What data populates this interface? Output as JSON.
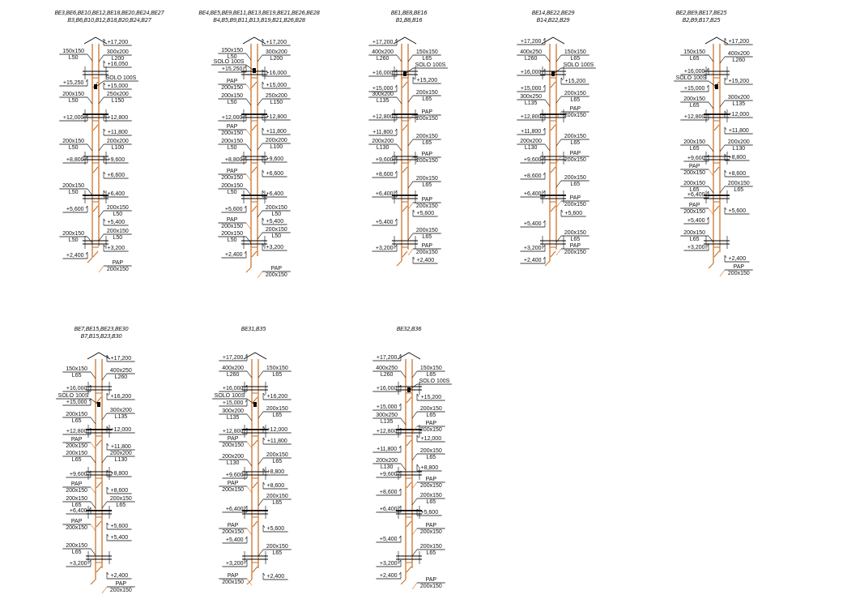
{
  "colors": {
    "pipe": "#c8691c",
    "line": "#000000"
  },
  "diagrams": [
    {
      "title": [
        "BE3,BE6,BE10,BE12,BE18,BE20,BE24,BE27",
        "B3,B6,B10,B12,B18,B20,B24,B27"
      ],
      "labels": [
        [
          "+17,200"
        ],
        [
          "150x150",
          "L50"
        ],
        [
          "300x200",
          "L200"
        ],
        [
          "+16,050"
        ],
        [
          "SOLO 100S"
        ],
        [
          "+15,250"
        ],
        [
          "+15,000"
        ],
        [
          "200x150",
          "L50"
        ],
        [
          "250x200",
          "L150"
        ],
        [
          "+12,000"
        ],
        [
          "+12,800"
        ],
        [
          "+11,800"
        ],
        [
          "200x150",
          "L50"
        ],
        [
          "200x200",
          "L100"
        ],
        [
          "+8,800"
        ],
        [
          "+9,600"
        ],
        [
          "+6,600"
        ],
        [
          "200x150",
          "L50"
        ],
        [
          "+6,400"
        ],
        [
          "+5,600"
        ],
        [
          "200x150",
          "L50"
        ],
        [
          "+5,400"
        ],
        [
          "200x150",
          "L50"
        ],
        [
          "200x150",
          "L50"
        ],
        [
          "+3,200"
        ],
        [
          "+2,400"
        ],
        [
          "PAP",
          "200x150"
        ]
      ]
    },
    {
      "title": [
        "BE4,BE5,BE9,BE11,BE13,BE19,BE21,BE26,BE28",
        "B4,B5,B9,B11,B13,B19,B21,B26,B28"
      ],
      "labels": [
        [
          "+17,200"
        ],
        [
          "150x150",
          "L50"
        ],
        [
          "300x200",
          "L200"
        ],
        [
          "SOLO 100S"
        ],
        [
          "+15,250"
        ],
        [
          "+16,000"
        ],
        [
          "PAP",
          "200x150"
        ],
        [
          "+15,000"
        ],
        [
          "200x150",
          "L50"
        ],
        [
          "250x200",
          "L150"
        ],
        [
          "+12,000"
        ],
        [
          "+12,800"
        ],
        [
          "PAP",
          "200x150"
        ],
        [
          "+11,800"
        ],
        [
          "200x150",
          "L50"
        ],
        [
          "200x200",
          "L100"
        ],
        [
          "+8,800"
        ],
        [
          "+9,600"
        ],
        [
          "PAP",
          "200x150"
        ],
        [
          "+6,600"
        ],
        [
          "200x150",
          "L50"
        ],
        [
          "+6,400"
        ],
        [
          "+5,600"
        ],
        [
          "200x150",
          "L50"
        ],
        [
          "PAP",
          "200x150"
        ],
        [
          "+5,400"
        ],
        [
          "200x150",
          "L50"
        ],
        [
          "200x150",
          "L50"
        ],
        [
          "+3,200"
        ],
        [
          "+2,400"
        ],
        [
          "PAP",
          "200x150"
        ]
      ]
    },
    {
      "title": [
        "BE1,BE8,BE16",
        "B1,B8,B16"
      ],
      "labels": [
        [
          "+17,200"
        ],
        [
          "400x200",
          "L260"
        ],
        [
          "150x150",
          "L65"
        ],
        [
          "SOLO 100S"
        ],
        [
          "+16,000"
        ],
        [
          "+15,200"
        ],
        [
          "+15,000"
        ],
        [
          "300x200",
          "L135"
        ],
        [
          "200x150",
          "L65"
        ],
        [
          "+12,800"
        ],
        [
          "PAP",
          "200x150"
        ],
        [
          "+11,800"
        ],
        [
          "200x200",
          "L130"
        ],
        [
          "200x150",
          "L65"
        ],
        [
          "+9,600"
        ],
        [
          "PAP",
          "200x150"
        ],
        [
          "+8,600"
        ],
        [
          "200x150",
          "L65"
        ],
        [
          "+6,400"
        ],
        [
          "PAP",
          "200x150"
        ],
        [
          "+5,600"
        ],
        [
          "+5,400"
        ],
        [
          "200x150",
          "L65"
        ],
        [
          "+3,200"
        ],
        [
          "PAP",
          "200x150"
        ],
        [
          "+2,400"
        ]
      ]
    },
    {
      "title": [
        "BE14,BE22,BE29",
        "B14,B22,B29"
      ],
      "labels": [
        [
          "+17,200"
        ],
        [
          "400x250",
          "L260"
        ],
        [
          "150x150",
          "L65"
        ],
        [
          "SOLO 100S"
        ],
        [
          "+16,000"
        ],
        [
          "+15,200"
        ],
        [
          "+15,000"
        ],
        [
          "300x250",
          "L135"
        ],
        [
          "200x150",
          "L65"
        ],
        [
          "PAP",
          "200x150"
        ],
        [
          "+12,800"
        ],
        [
          "+11,800"
        ],
        [
          "200x200",
          "L130"
        ],
        [
          "200x150",
          "L65"
        ],
        [
          "PAP",
          "200x150"
        ],
        [
          "+9,600"
        ],
        [
          "+8,600"
        ],
        [
          "200x150",
          "L65"
        ],
        [
          "+6,400"
        ],
        [
          "PAP",
          "200x150"
        ],
        [
          "+5,600"
        ],
        [
          "+5,400"
        ],
        [
          "200x150",
          "L65"
        ],
        [
          "+3,200"
        ],
        [
          "PAP",
          "200x150"
        ],
        [
          "+2,400"
        ]
      ]
    },
    {
      "title": [
        "BE2,BE9,BE17,BE25",
        "B2,B9,B17,B25"
      ],
      "labels": [
        [
          "+17,200"
        ],
        [
          "150x150",
          "L65"
        ],
        [
          "400x200",
          "L260"
        ],
        [
          "+16,000"
        ],
        [
          "SOLO 100S"
        ],
        [
          "+15,200"
        ],
        [
          "+15,000"
        ],
        [
          "200x150",
          "L65"
        ],
        [
          "300x200",
          "L135"
        ],
        [
          "+12,800"
        ],
        [
          "+12,000"
        ],
        [
          "+11,800"
        ],
        [
          "200x150",
          "L65"
        ],
        [
          "200x200",
          "L130"
        ],
        [
          "+9,600"
        ],
        [
          "+8,800"
        ],
        [
          "PAP",
          "200x150"
        ],
        [
          "+8,600"
        ],
        [
          "200x150",
          "L65"
        ],
        [
          "200x150",
          "L65"
        ],
        [
          "+6,400"
        ],
        [
          "PAP",
          "200x150"
        ],
        [
          "+5,600"
        ],
        [
          "+5,400"
        ],
        [
          "200x150",
          "L65"
        ],
        [
          "+3,200"
        ],
        [
          "+2,400"
        ],
        [
          "PAP",
          "200x150"
        ]
      ]
    },
    {
      "title": [
        "BE7,BE15,BE23,BE30",
        "B7,B15,B23,B30"
      ],
      "labels": [
        [
          "+17,200"
        ],
        [
          "150x150",
          "L65"
        ],
        [
          "400x250",
          "L260"
        ],
        [
          "+16,000"
        ],
        [
          "SOLO 100S"
        ],
        [
          "+16,200"
        ],
        [
          "+15,000"
        ],
        [
          "200x150",
          "L65"
        ],
        [
          "300x200",
          "L135"
        ],
        [
          "+12,800"
        ],
        [
          "+12,000"
        ],
        [
          "PAP",
          "200x150"
        ],
        [
          "+11,800"
        ],
        [
          "200x150",
          "L65"
        ],
        [
          "200x200",
          "L130"
        ],
        [
          "+9,600"
        ],
        [
          "+8,800"
        ],
        [
          "PAP",
          "200x150"
        ],
        [
          "+8,600"
        ],
        [
          "200x150",
          "L65"
        ],
        [
          "200x150",
          "L65"
        ],
        [
          "+6,400"
        ],
        [
          "PAP",
          "200x150"
        ],
        [
          "+5,600"
        ],
        [
          "+5,400"
        ],
        [
          "200x150",
          "L65"
        ],
        [
          "+3,200"
        ],
        [
          "+2,400"
        ],
        [
          "PAP",
          "200x150"
        ]
      ]
    },
    {
      "title": [
        "BE31,B35"
      ],
      "labels": [
        [
          "+17,200"
        ],
        [
          "400x200",
          "L260"
        ],
        [
          "150x150",
          "L65"
        ],
        [
          "+16,000"
        ],
        [
          "SOLO 100S"
        ],
        [
          "+16,200"
        ],
        [
          "+15,000"
        ],
        [
          "300x200",
          "L135"
        ],
        [
          "200x150",
          "L65"
        ],
        [
          "+12,800"
        ],
        [
          "+12,000"
        ],
        [
          "PAP",
          "200x150"
        ],
        [
          "+11,800"
        ],
        [
          "200x200",
          "L130"
        ],
        [
          "200x150",
          "L65"
        ],
        [
          "+9,600"
        ],
        [
          "+8,800"
        ],
        [
          "PAP",
          "200x150"
        ],
        [
          "+8,600"
        ],
        [
          "200x150",
          "L65"
        ],
        [
          "+6,400"
        ],
        [
          "PAP",
          "200x150"
        ],
        [
          "+5,600"
        ],
        [
          "+5,400"
        ],
        [
          "200x150",
          "L65"
        ],
        [
          "+3,200"
        ],
        [
          "PAP",
          "200x150"
        ],
        [
          "+2,400"
        ]
      ]
    },
    {
      "title": [
        "BE32,B36"
      ],
      "labels": [
        [
          "+17,200"
        ],
        [
          "400x250",
          "L260"
        ],
        [
          "150x150",
          "L65"
        ],
        [
          "SOLO 100S"
        ],
        [
          "+16,000"
        ],
        [
          "+15,200"
        ],
        [
          "+15,000"
        ],
        [
          "200x150",
          "L65"
        ],
        [
          "300x250",
          "L135"
        ],
        [
          "PAP",
          "200x150"
        ],
        [
          "+12,800"
        ],
        [
          "+12,000"
        ],
        [
          "+11,800"
        ],
        [
          "200x150",
          "L65"
        ],
        [
          "200x200",
          "L130"
        ],
        [
          "+8,800"
        ],
        [
          "+9,600"
        ],
        [
          "PAP",
          "200x150"
        ],
        [
          "+8,600"
        ],
        [
          "200x150",
          "L65"
        ],
        [
          "+6,400"
        ],
        [
          "+5,600"
        ],
        [
          "PAP",
          "200x150"
        ],
        [
          "+5,400"
        ],
        [
          "200x150",
          "L65"
        ],
        [
          "+3,200"
        ],
        [
          "+2,400"
        ],
        [
          "PAP",
          "200x150"
        ]
      ]
    }
  ]
}
